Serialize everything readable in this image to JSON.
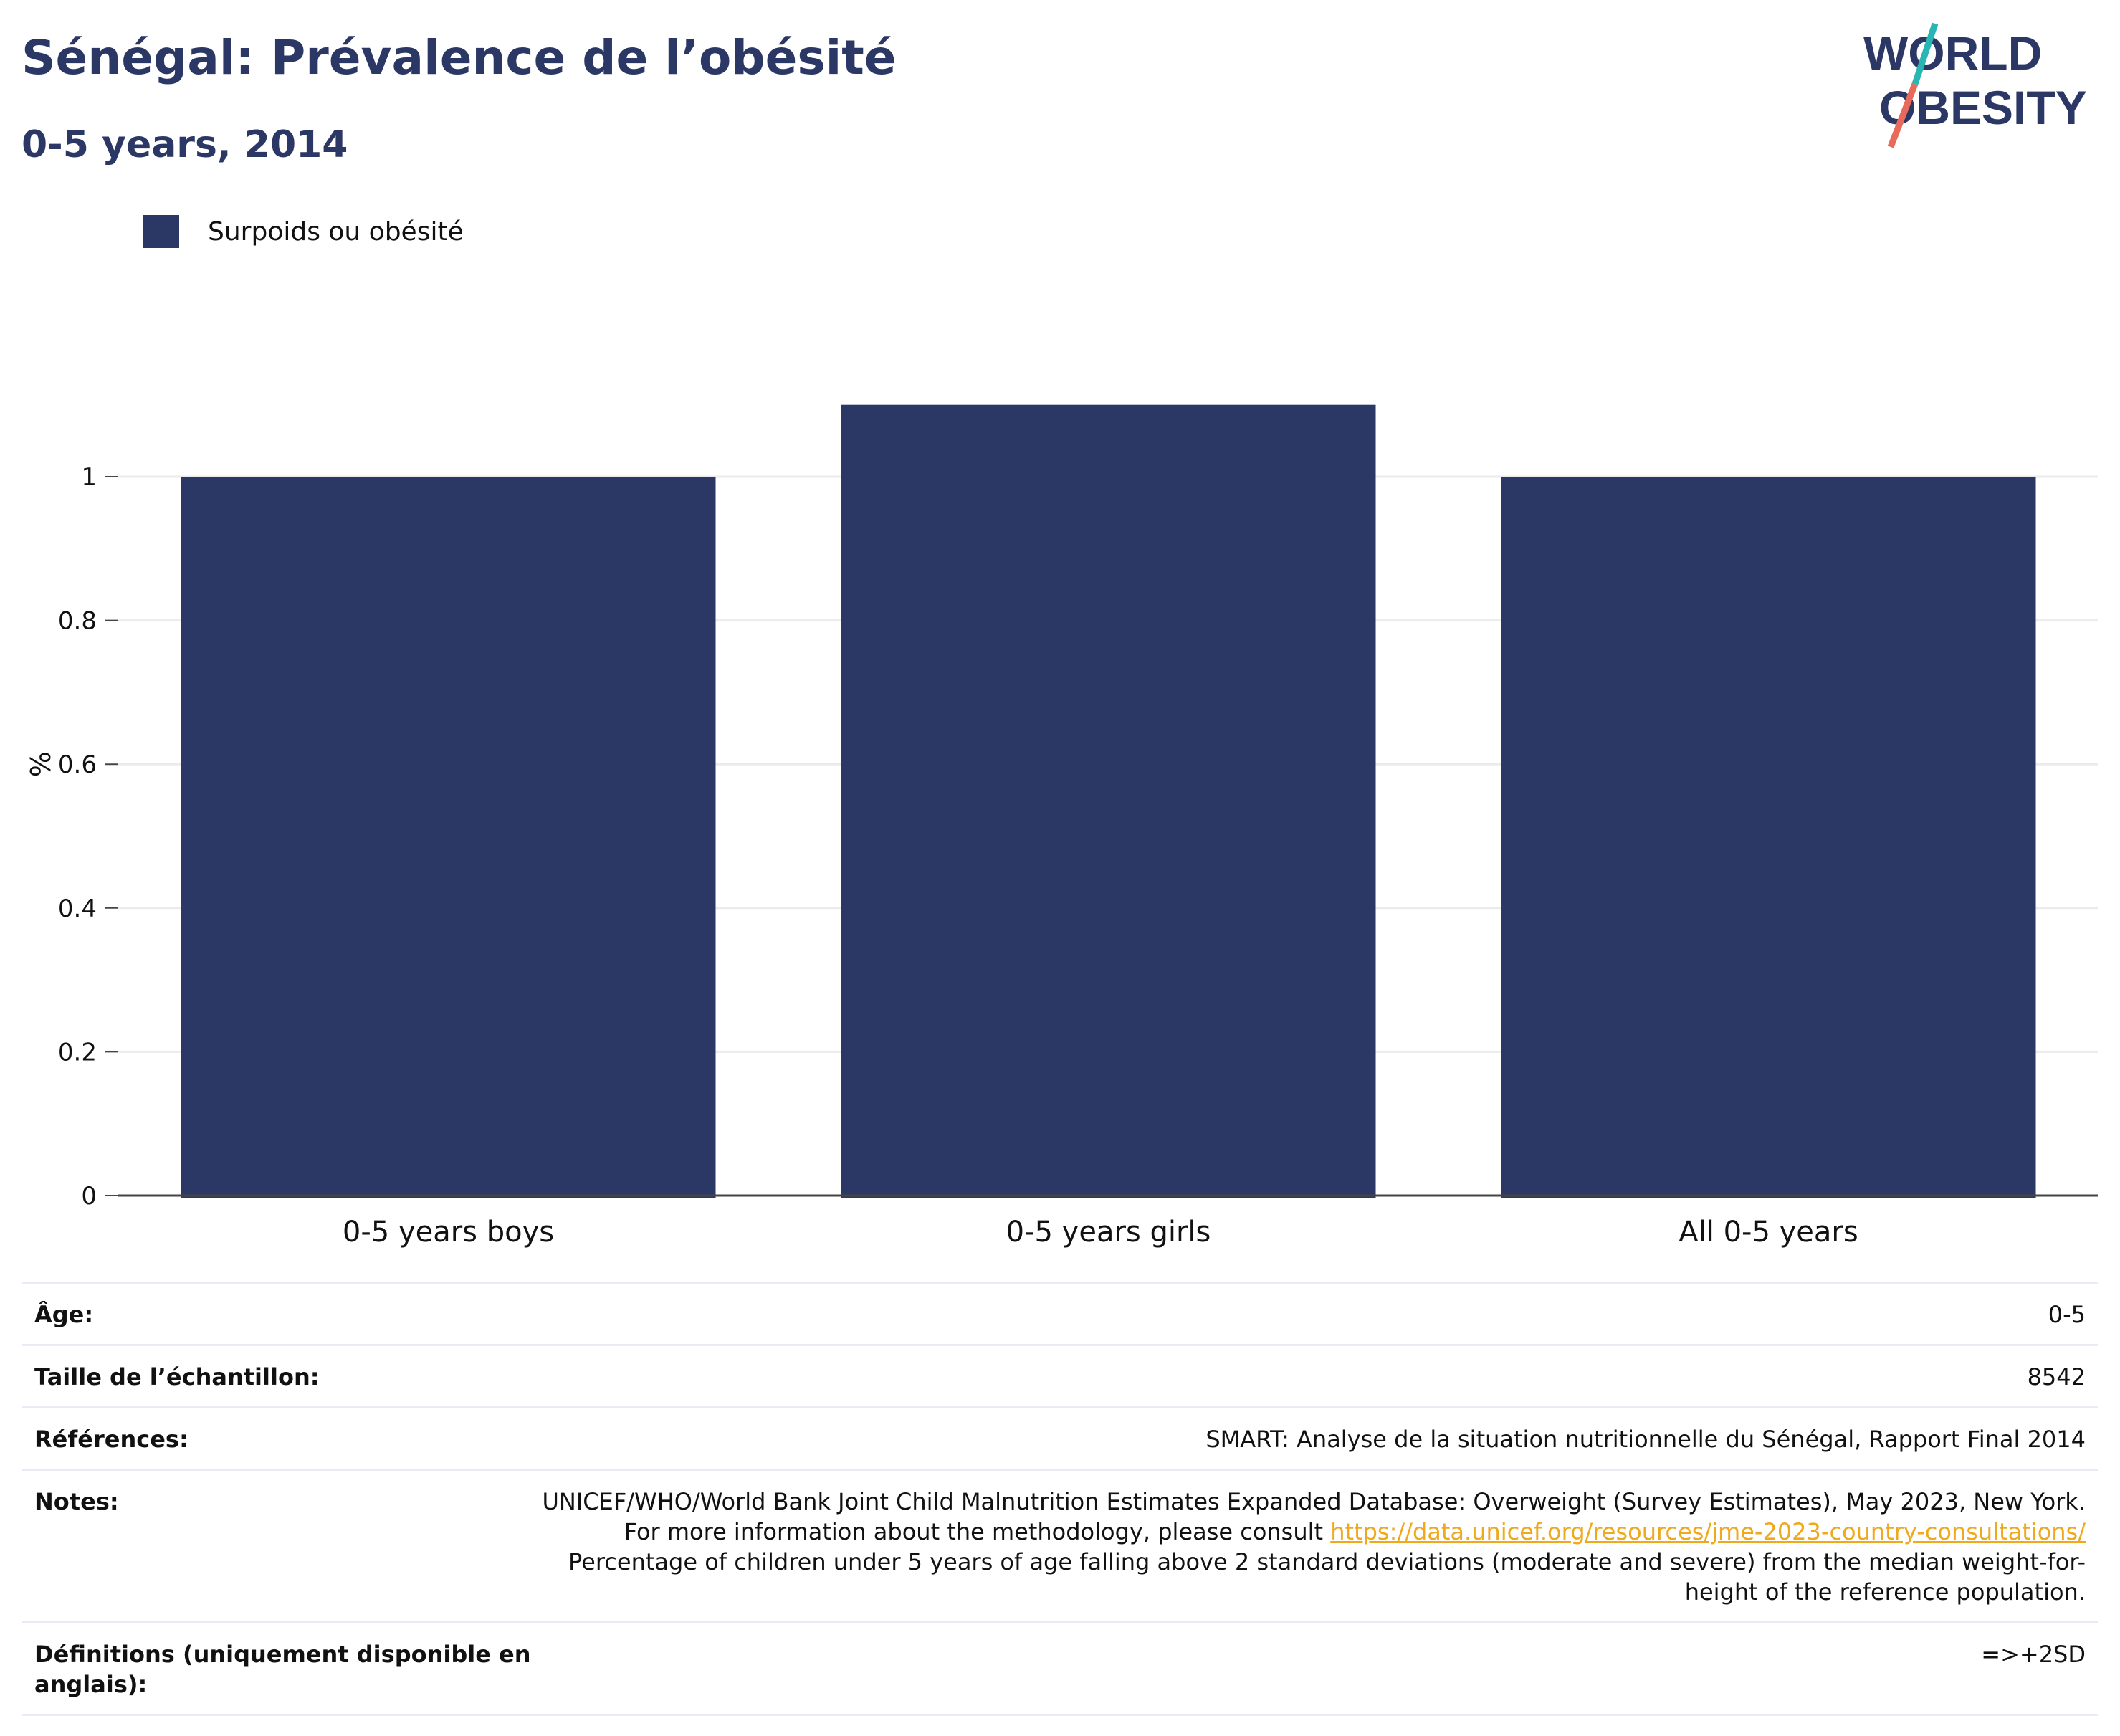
{
  "header": {
    "title": "Sénégal: Prévalence de l’obésité",
    "subtitle": "0-5 years, 2014"
  },
  "logo": {
    "line1": "WORLD",
    "line2": "OBESITY",
    "colors": {
      "text": "#2b3765",
      "slash_top": "#2ab5b5",
      "slash_bottom": "#e86a5a"
    }
  },
  "legend": {
    "items": [
      {
        "label": "Surpoids ou obésité",
        "color": "#2b3765"
      }
    ]
  },
  "chart_data": {
    "type": "bar",
    "categories": [
      "0-5 years boys",
      "0-5 years girls",
      "All 0-5 years"
    ],
    "series": [
      {
        "name": "Surpoids ou obésité",
        "values": [
          1.0,
          1.1,
          1.0
        ],
        "color": "#2b3765"
      }
    ],
    "ylabel": "%",
    "xlabel": "",
    "ylim": [
      0,
      1.1
    ],
    "yticks": [
      "0",
      "0.2",
      "0.4",
      "0.6",
      "0.8",
      "1"
    ],
    "grid": true,
    "legend_position": "top-left"
  },
  "meta": {
    "rows": [
      {
        "label": "Âge:",
        "value": "0-5"
      },
      {
        "label": "Taille de l’échantillon:",
        "value": "8542"
      },
      {
        "label": "Références:",
        "value": "SMART: Analyse de la situation nutritionnelle du Sénégal, Rapport Final 2014"
      },
      {
        "label": "Notes:",
        "value_before": "UNICEF/WHO/World Bank Joint Child Malnutrition Estimates Expanded Database: Overweight (Survey Estimates), May 2023, New York. For more information about the methodology, please consult ",
        "link": "https://data.unicef.org/resources/jme-2023-country-consultations/",
        "value_after": " Percentage of children under 5 years of age falling above 2 standard deviations (moderate and severe) from the median weight-for-height of the reference population."
      },
      {
        "label": "Définitions (uniquement disponible en anglais):",
        "value": "=>+2SD"
      }
    ]
  }
}
